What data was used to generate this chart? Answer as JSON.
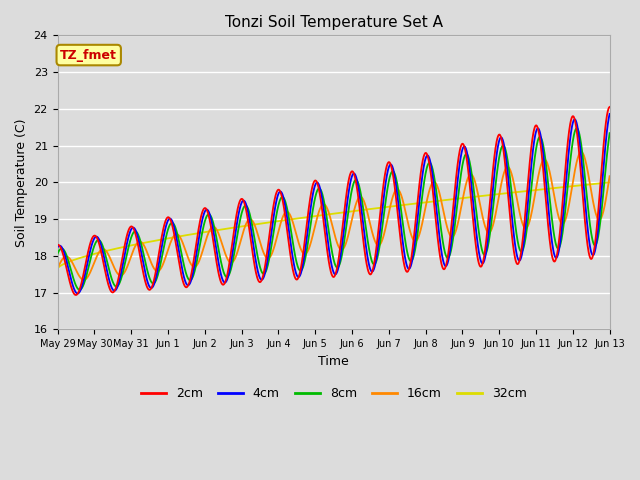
{
  "title": "Tonzi Soil Temperature Set A",
  "xlabel": "Time",
  "ylabel": "Soil Temperature (C)",
  "annotation": "TZ_fmet",
  "ylim": [
    16.0,
    24.0
  ],
  "yticks": [
    16.0,
    17.0,
    18.0,
    19.0,
    20.0,
    21.0,
    22.0,
    23.0,
    24.0
  ],
  "xtick_labels": [
    "May 29",
    "May 30",
    "May 31",
    "Jun 1",
    "Jun 2",
    "Jun 3",
    "Jun 4",
    "Jun 5",
    "Jun 6",
    "Jun 7",
    "Jun 8",
    "Jun 9",
    "Jun 10",
    "Jun 11",
    "Jun 12",
    "Jun 13"
  ],
  "colors": {
    "2cm": "#ff0000",
    "4cm": "#0000ff",
    "8cm": "#00bb00",
    "16cm": "#ff8800",
    "32cm": "#dddd00"
  },
  "background_color": "#dcdcdc",
  "annotation_bg": "#ffffa0",
  "annotation_border": "#aa8800",
  "annotation_color": "#cc0000"
}
